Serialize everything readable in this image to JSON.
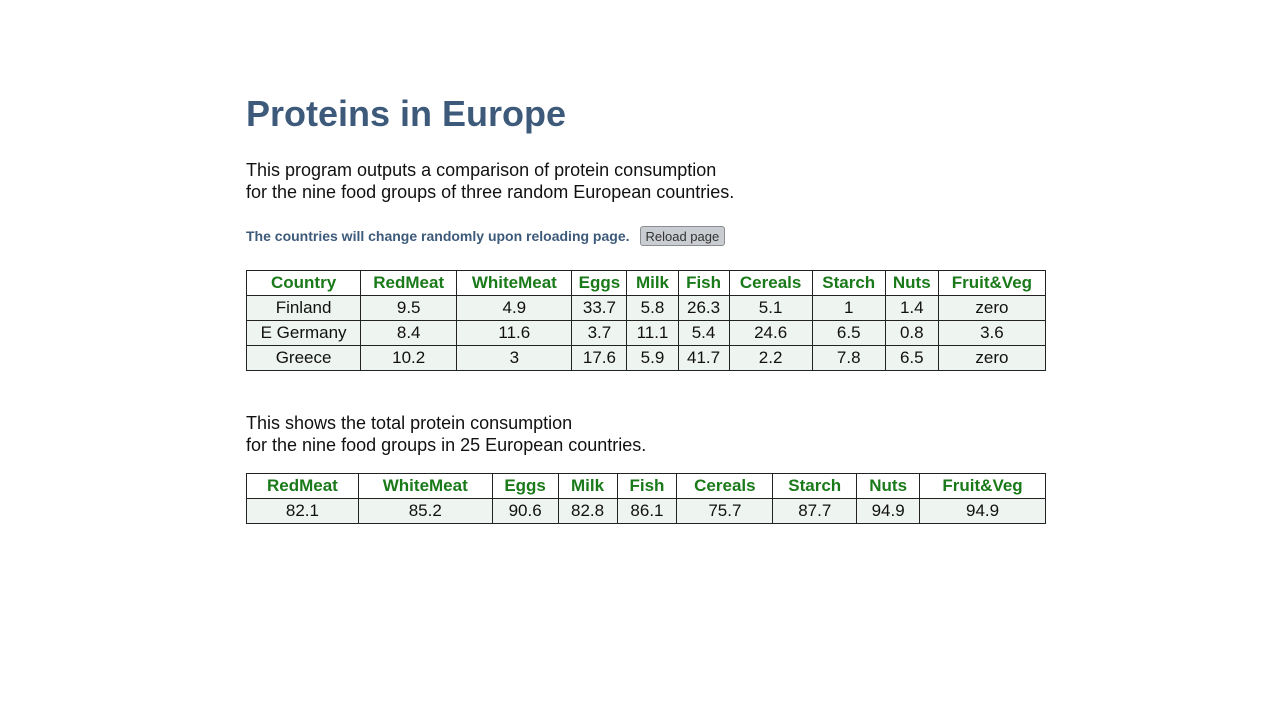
{
  "title": "Proteins in Europe",
  "intro": {
    "line1": "This program outputs a comparison of protein consumption",
    "line2": "for the nine food groups of three random European countries."
  },
  "reload": {
    "note": "The countries will change randomly upon reloading page.",
    "button_label": "Reload page"
  },
  "comparison_table": {
    "headers": [
      "Country",
      "RedMeat",
      "WhiteMeat",
      "Eggs",
      "Milk",
      "Fish",
      "Cereals",
      "Starch",
      "Nuts",
      "Fruit&Veg"
    ],
    "rows": [
      [
        "Finland",
        "9.5",
        "4.9",
        "33.7",
        "5.8",
        "26.3",
        "5.1",
        "1",
        "1.4",
        "zero"
      ],
      [
        "E Germany",
        "8.4",
        "11.6",
        "3.7",
        "11.1",
        "5.4",
        "24.6",
        "6.5",
        "0.8",
        "3.6"
      ],
      [
        "Greece",
        "10.2",
        "3",
        "17.6",
        "5.9",
        "41.7",
        "2.2",
        "7.8",
        "6.5",
        "zero"
      ]
    ]
  },
  "totals_intro": {
    "line1": "This shows the total protein consumption",
    "line2": "for the nine food groups in 25 European countries."
  },
  "totals_table": {
    "headers": [
      "RedMeat",
      "WhiteMeat",
      "Eggs",
      "Milk",
      "Fish",
      "Cereals",
      "Starch",
      "Nuts",
      "Fruit&Veg"
    ],
    "rows": [
      [
        "82.1",
        "85.2",
        "90.6",
        "82.8",
        "86.1",
        "75.7",
        "87.7",
        "94.9",
        "94.9"
      ]
    ]
  },
  "colors": {
    "title": "#3d5a7a",
    "header_text": "#1a7a1a",
    "cell_bg": "#eef4ef"
  }
}
